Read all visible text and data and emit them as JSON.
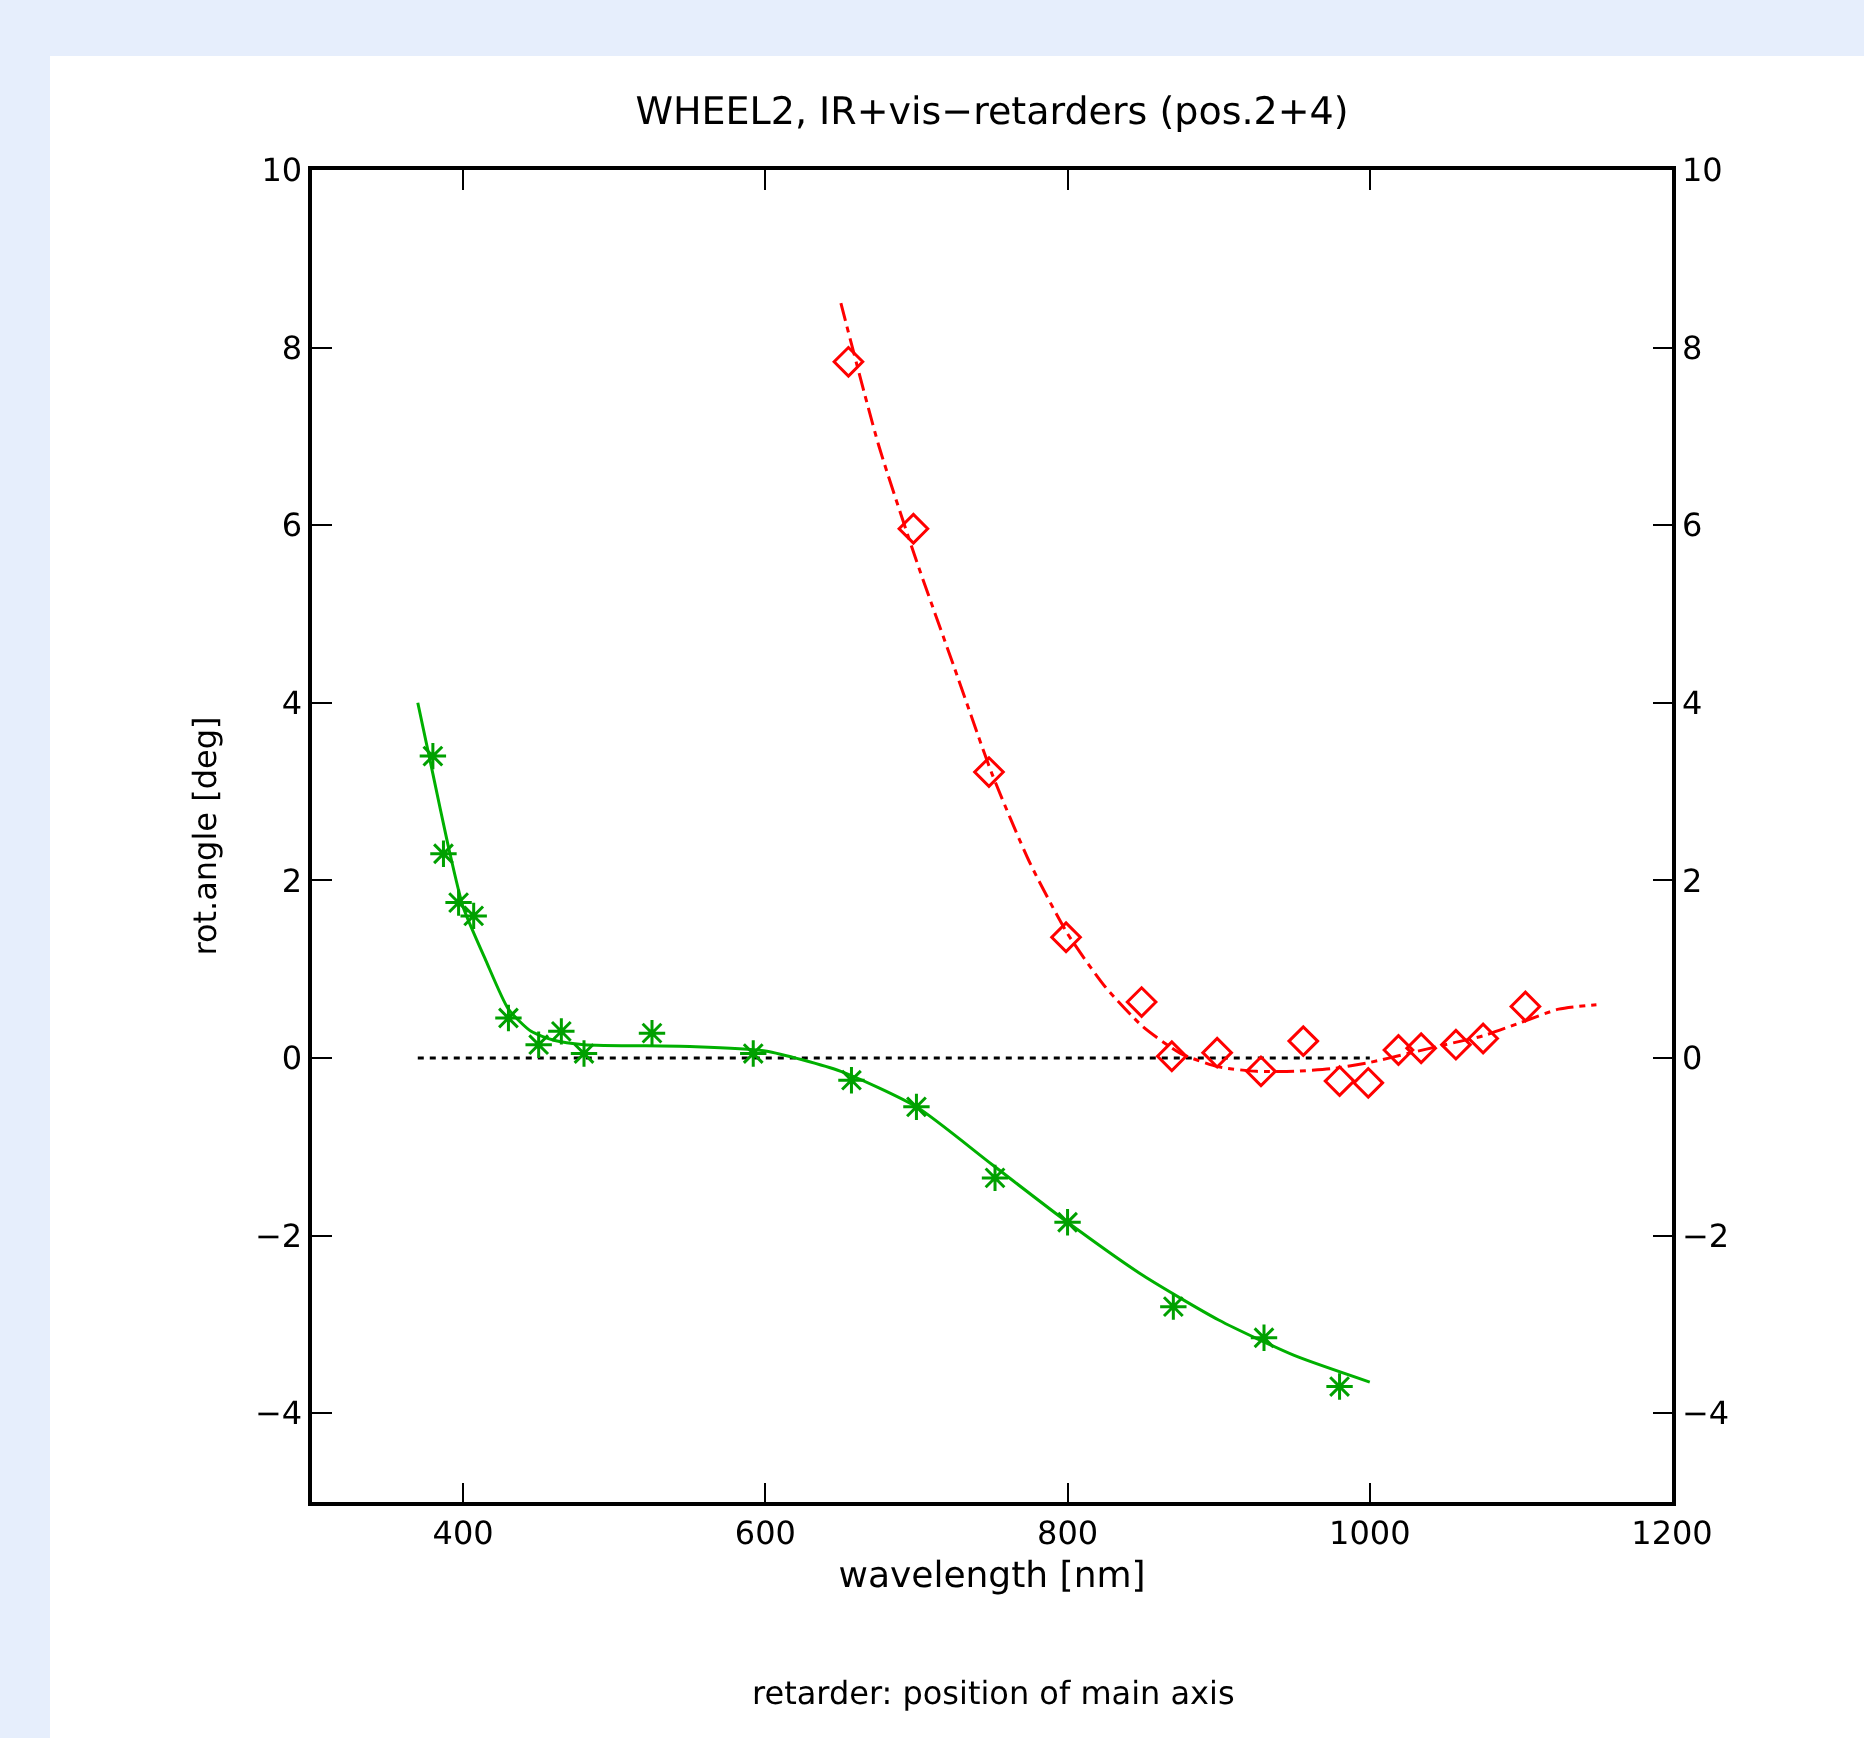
{
  "chart_data": {
    "type": "scatter",
    "title": "WHEEL2, IR+vis−retarders (pos.2+4)",
    "xlabel": "wavelength [nm]",
    "ylabel": "rot.angle [deg]",
    "annotations": [
      "retarder: position of main axis"
    ],
    "xlim": [
      300,
      1200
    ],
    "xticks": [
      400,
      600,
      800,
      1000,
      1200
    ],
    "ylim": [
      -5,
      10
    ],
    "yticks": [
      {
        "value": -4,
        "label": "−4"
      },
      {
        "value": -2,
        "label": "−2"
      },
      0,
      2,
      4,
      6,
      8,
      10
    ],
    "y2lim": [
      -5,
      10
    ],
    "y2ticks": [
      {
        "value": -4,
        "label": "−4"
      },
      {
        "value": -2,
        "label": "−2"
      },
      0,
      2,
      4,
      6,
      8,
      10
    ],
    "series": [
      {
        "type": "line",
        "color": "#000000",
        "line_style": "dotted",
        "marker": "none",
        "x": [
          370,
          1000
        ],
        "values": [
          0,
          0
        ]
      },
      {
        "type": "line",
        "color": "#00b000",
        "line_style": "solid",
        "marker": "none",
        "x": [
          370,
          380,
          390,
          400,
          415,
          430,
          445,
          460,
          480,
          550,
          600,
          650,
          700,
          750,
          800,
          850,
          900,
          950,
          1000
        ],
        "values": [
          4.0,
          3.2,
          2.4,
          1.7,
          1.1,
          0.55,
          0.3,
          0.2,
          0.15,
          0.13,
          0.08,
          -0.15,
          -0.55,
          -1.2,
          -1.85,
          -2.45,
          -2.95,
          -3.35,
          -3.65
        ]
      },
      {
        "color": "#00a000",
        "marker": "cross",
        "x": [
          380,
          387,
          397,
          407,
          430,
          450,
          465,
          480,
          525,
          592,
          657,
          700,
          752,
          800,
          870,
          930,
          980
        ],
        "values": [
          3.4,
          2.3,
          1.75,
          1.6,
          0.45,
          0.15,
          0.3,
          0.05,
          0.28,
          0.05,
          -0.25,
          -0.55,
          -1.35,
          -1.85,
          -2.8,
          -3.15,
          -3.7
        ]
      },
      {
        "type": "line",
        "color": "#ff0000",
        "line_style": "dashed",
        "marker": "none",
        "x": [
          650,
          675,
          700,
          725,
          750,
          775,
          800,
          825,
          850,
          875,
          900,
          925,
          950,
          975,
          1000,
          1025,
          1050,
          1075,
          1100,
          1125,
          1150
        ],
        "values": [
          8.5,
          6.9,
          5.6,
          4.4,
          3.2,
          2.2,
          1.4,
          0.8,
          0.35,
          0.05,
          -0.1,
          -0.15,
          -0.15,
          -0.12,
          -0.05,
          0.05,
          0.15,
          0.25,
          0.4,
          0.55,
          0.6
        ]
      },
      {
        "color": "#ff0000",
        "marker": "diamond",
        "x": [
          655,
          698,
          748,
          799,
          849,
          869,
          899,
          928,
          956,
          980,
          999,
          1019,
          1034,
          1057,
          1075,
          1103
        ],
        "values": [
          7.84,
          5.96,
          3.22,
          1.36,
          0.63,
          0.02,
          0.06,
          -0.15,
          0.19,
          -0.26,
          -0.28,
          0.09,
          0.11,
          0.15,
          0.22,
          0.58
        ]
      }
    ]
  }
}
